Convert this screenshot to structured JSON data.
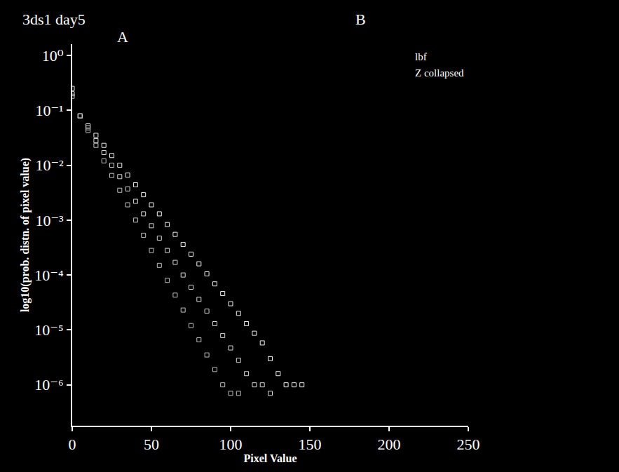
{
  "chart_data": {
    "type": "scatter",
    "title": "3ds1 day5",
    "annotations": [
      "A",
      "B",
      "lbf",
      "Z collapsed"
    ],
    "x_label": "Pixel Value",
    "y_label": "log10(prob. distn. of pixel value)",
    "log": "y",
    "grid": false,
    "marker": "square-open",
    "xlim": [
      0,
      250
    ],
    "xticks": [
      0,
      50,
      100,
      150,
      200,
      250
    ],
    "ylim": [
      1.8e-07,
      1.6
    ],
    "yticks": [
      {
        "value": 1,
        "label": "10⁰"
      },
      {
        "value": 0.1,
        "label": "10⁻¹"
      },
      {
        "value": 0.01,
        "label": "10⁻²"
      },
      {
        "value": 0.001,
        "label": "10⁻³"
      },
      {
        "value": 0.0001,
        "label": "10⁻⁴"
      },
      {
        "value": 1e-05,
        "label": "10⁻⁵"
      },
      {
        "value": 1e-06,
        "label": "10⁻⁶"
      }
    ],
    "x": [
      0,
      5,
      10,
      15,
      20,
      25,
      30,
      35,
      40,
      45,
      50,
      55,
      60,
      65,
      70,
      75,
      80,
      85,
      90,
      95,
      100,
      105,
      110,
      115,
      120,
      125,
      130,
      135,
      140,
      145
    ],
    "series": [
      {
        "color": "#f0f0f0",
        "values": [
          0.25,
          0.079,
          0.052,
          0.035,
          0.023,
          0.015,
          0.01,
          0.0066,
          0.0044,
          0.0029,
          0.0019,
          0.0013,
          0.00083,
          0.00055,
          0.00036,
          0.00024,
          0.00016,
          0.000105,
          6.9e-05,
          4.6e-05,
          3e-05,
          2e-05,
          1.3e-05,
          8.7e-06,
          5.8e-06,
          3e-06,
          1.6e-06,
          1e-06,
          1e-06,
          1e-06
        ]
      },
      {
        "color": "#d8d8d8",
        "values": [
          0.2,
          0.079,
          0.048,
          0.028,
          0.017,
          0.01,
          0.0062,
          0.0037,
          0.0022,
          0.0013,
          0.00079,
          0.00047,
          0.00028,
          0.00017,
          0.0001,
          6e-05,
          3.6e-05,
          2.2e-05,
          1.3e-05,
          7.9e-06,
          4.7e-06,
          2.8e-06,
          1.6e-06,
          1e-06,
          1e-06,
          7e-07,
          null,
          null,
          null,
          null
        ]
      },
      {
        "color": "#c0c0c0",
        "values": [
          0.18,
          0.079,
          0.043,
          0.023,
          0.012,
          0.0065,
          0.0035,
          0.0019,
          0.001,
          0.00053,
          0.00028,
          0.00015,
          8e-05,
          4.3e-05,
          2.3e-05,
          1.2e-05,
          6.6e-06,
          3.5e-06,
          1.9e-06,
          1e-06,
          7e-07,
          7e-07,
          null,
          null,
          null,
          null,
          null,
          null,
          null,
          null
        ]
      }
    ]
  }
}
